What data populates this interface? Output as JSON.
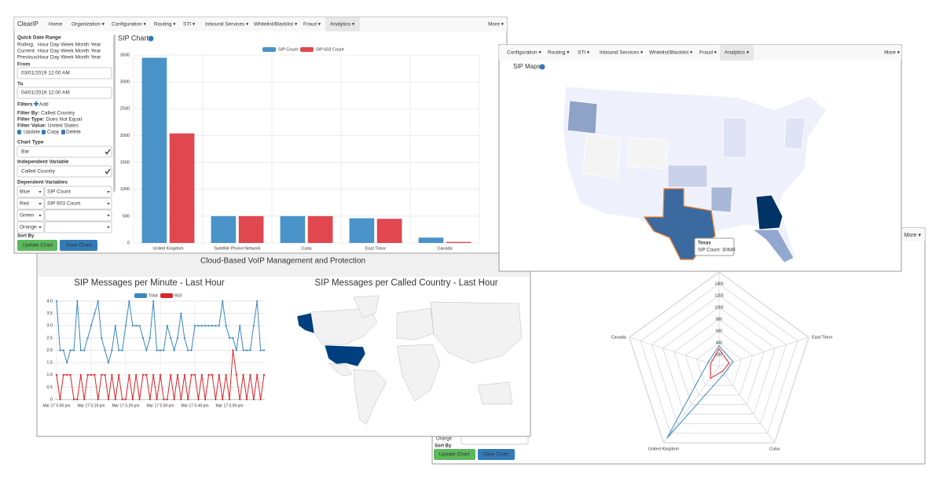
{
  "nav": {
    "brand": "ClearIP",
    "items": [
      "Home",
      "Organization ▾",
      "Configuration ▾",
      "Routing ▾",
      "STI ▾",
      "Inbound Services ▾",
      "Whitelist/Blacklist ▾",
      "Fraud ▾",
      "Analytics ▾"
    ],
    "more": "More ▾"
  },
  "map_nav": {
    "items": [
      "Configuration ▾",
      "Routing ▾",
      "STI ▾",
      "Inbound Services ▾",
      "Whitelist/Blacklist ▾",
      "Fraud ▾",
      "Analytics ▾"
    ],
    "more": "More ▾"
  },
  "sidebar": {
    "quick_range": "Quick Date Range",
    "ranges": [
      {
        "label": "Rolling:",
        "links": "Hour Day Week Month Year"
      },
      {
        "label": "Current:",
        "links": "Hour Day Week Month Year"
      },
      {
        "label": "Previous:",
        "links": "Hour Day Week Month Year"
      }
    ],
    "from_label": "From",
    "from": "03/01/2019 12:00 AM",
    "to_label": "To",
    "to": "04/01/2019 12:00 AM",
    "filters": "Filters",
    "add": "Add",
    "filter": [
      {
        "label": "Filter By:",
        "value": "Called Country"
      },
      {
        "label": "Filter Type:",
        "value": "Does Not Equal"
      },
      {
        "label": "Filter Value:",
        "value": "United States"
      }
    ],
    "actions": [
      "Update",
      "Copy",
      "Delete"
    ],
    "chart_type_label": "Chart Type",
    "chart_type": "Bar",
    "independent_label": "Independent Variable",
    "independent": "Called Country",
    "dependent_label": "Dependent Variables",
    "dependent": [
      {
        "color": "Blue",
        "variable": "SIP Count"
      },
      {
        "color": "Red",
        "variable": "SIP 603 Count"
      },
      {
        "color": "Green"
      },
      {
        "color": "Orange"
      }
    ],
    "sort_by": "Sort By",
    "buttons": [
      "Update Chart",
      "Save Chart"
    ]
  },
  "charts_heading": "SIP Charts",
  "maps": {
    "heading": "SIP Maps",
    "tooltip": {
      "name": "Texas",
      "label": "SIP Count:",
      "value": 30640
    }
  },
  "dashboard": {
    "banner": "Cloud-Based VoIP Management and Protection",
    "map_title": "SIP Messages per Called Country - Last Hour"
  },
  "radar_window": {
    "more": "More ▾",
    "sort_option": "Orange",
    "sort_by": "Sort By",
    "buttons": [
      "Update Chart",
      "Save Chart"
    ]
  },
  "chart_data": [
    {
      "type": "bar",
      "categories": [
        "United Kingdom",
        "Satellite Phone Network",
        "Cuba",
        "East Timor",
        "Canada"
      ],
      "series": [
        {
          "name": "SIP Count",
          "color": "#4a93c9",
          "values": [
            3450,
            500,
            500,
            460,
            100
          ]
        },
        {
          "name": "SIP 603 Count",
          "color": "#e0474f",
          "values": [
            2040,
            500,
            500,
            450,
            20
          ]
        }
      ],
      "ylim": [
        0,
        3500
      ],
      "yticks": [
        0,
        500,
        1000,
        1500,
        2000,
        2500,
        3000,
        3500
      ],
      "grid": true
    },
    {
      "type": "line",
      "title": "SIP Messages per Minute - Last Hour",
      "categories": [
        "Mar 17 5:09 pm",
        null,
        null,
        null,
        null,
        null,
        null,
        null,
        null,
        null,
        "Mar 17 5:19 pm",
        null,
        null,
        null,
        null,
        null,
        null,
        null,
        null,
        null,
        "Mar 17 5:29 pm",
        null,
        null,
        null,
        null,
        null,
        null,
        null,
        null,
        null,
        "Mar 17 5:39 pm",
        null,
        null,
        null,
        null,
        null,
        null,
        null,
        null,
        null,
        "Mar 17 5:49 pm",
        null,
        null,
        null,
        null,
        null,
        null,
        null,
        null,
        null,
        "Mar 17 5:59 pm",
        null,
        null,
        null,
        null,
        null,
        null,
        null,
        null,
        null,
        null
      ],
      "series": [
        {
          "name": "Total",
          "color": "#3a87c4",
          "values": [
            4,
            2,
            2,
            1.5,
            2,
            2,
            4,
            2,
            2,
            2.5,
            3,
            3.5,
            4,
            2.5,
            2,
            1.5,
            2,
            3,
            2,
            2,
            3,
            4,
            3,
            3,
            3,
            2.5,
            2,
            2.5,
            4,
            2,
            2,
            2,
            3,
            2.5,
            2,
            2.5,
            3.5,
            2.5,
            2,
            2,
            3,
            3,
            3,
            3,
            3,
            3,
            3,
            3,
            4,
            3,
            2.5,
            2.5,
            2,
            3,
            2,
            2,
            2,
            3,
            4,
            2,
            2
          ]
        },
        {
          "name": "603",
          "color": "#d9262b",
          "values": [
            1,
            0,
            1,
            1,
            1,
            0,
            0,
            1,
            0,
            1,
            1,
            1,
            0,
            1,
            1,
            0,
            1,
            0,
            1,
            0,
            0,
            1,
            0,
            1,
            0,
            1,
            1,
            0,
            1,
            0,
            1,
            0,
            0,
            1,
            0,
            1,
            0,
            1,
            0,
            1,
            1,
            0,
            1,
            0,
            1,
            1,
            0,
            1,
            0,
            1,
            0,
            2,
            1,
            0,
            1,
            0,
            1,
            0,
            1,
            0,
            1
          ]
        }
      ],
      "ylim": [
        0,
        4
      ],
      "yticks": [
        0,
        0.5,
        {
          "value": 1,
          "label": "1.0"
        },
        1.5,
        {
          "value": 2,
          "label": "2.0"
        },
        2.5,
        {
          "value": 3,
          "label": "3.0"
        },
        3.5,
        {
          "value": 4,
          "label": "4.0"
        }
      ],
      "grid": true
    },
    {
      "type": "radar",
      "categories": [
        null,
        "East Timor",
        "Cuba",
        "United Kingdom",
        "Canada"
      ],
      "series": [
        {
          "name": "SIP Count",
          "color": "#3a87c4",
          "values": [
            350,
            250,
            150,
            1500,
            200
          ]
        },
        {
          "name": "SIP 603 Count",
          "color": "#d9262b",
          "values": [
            300,
            180,
            100,
            250,
            150
          ]
        }
      ],
      "rlim": [
        0,
        1600
      ],
      "rticks": [
        200,
        400,
        600,
        800,
        1000,
        1200,
        1400
      ],
      "grid": true
    }
  ]
}
